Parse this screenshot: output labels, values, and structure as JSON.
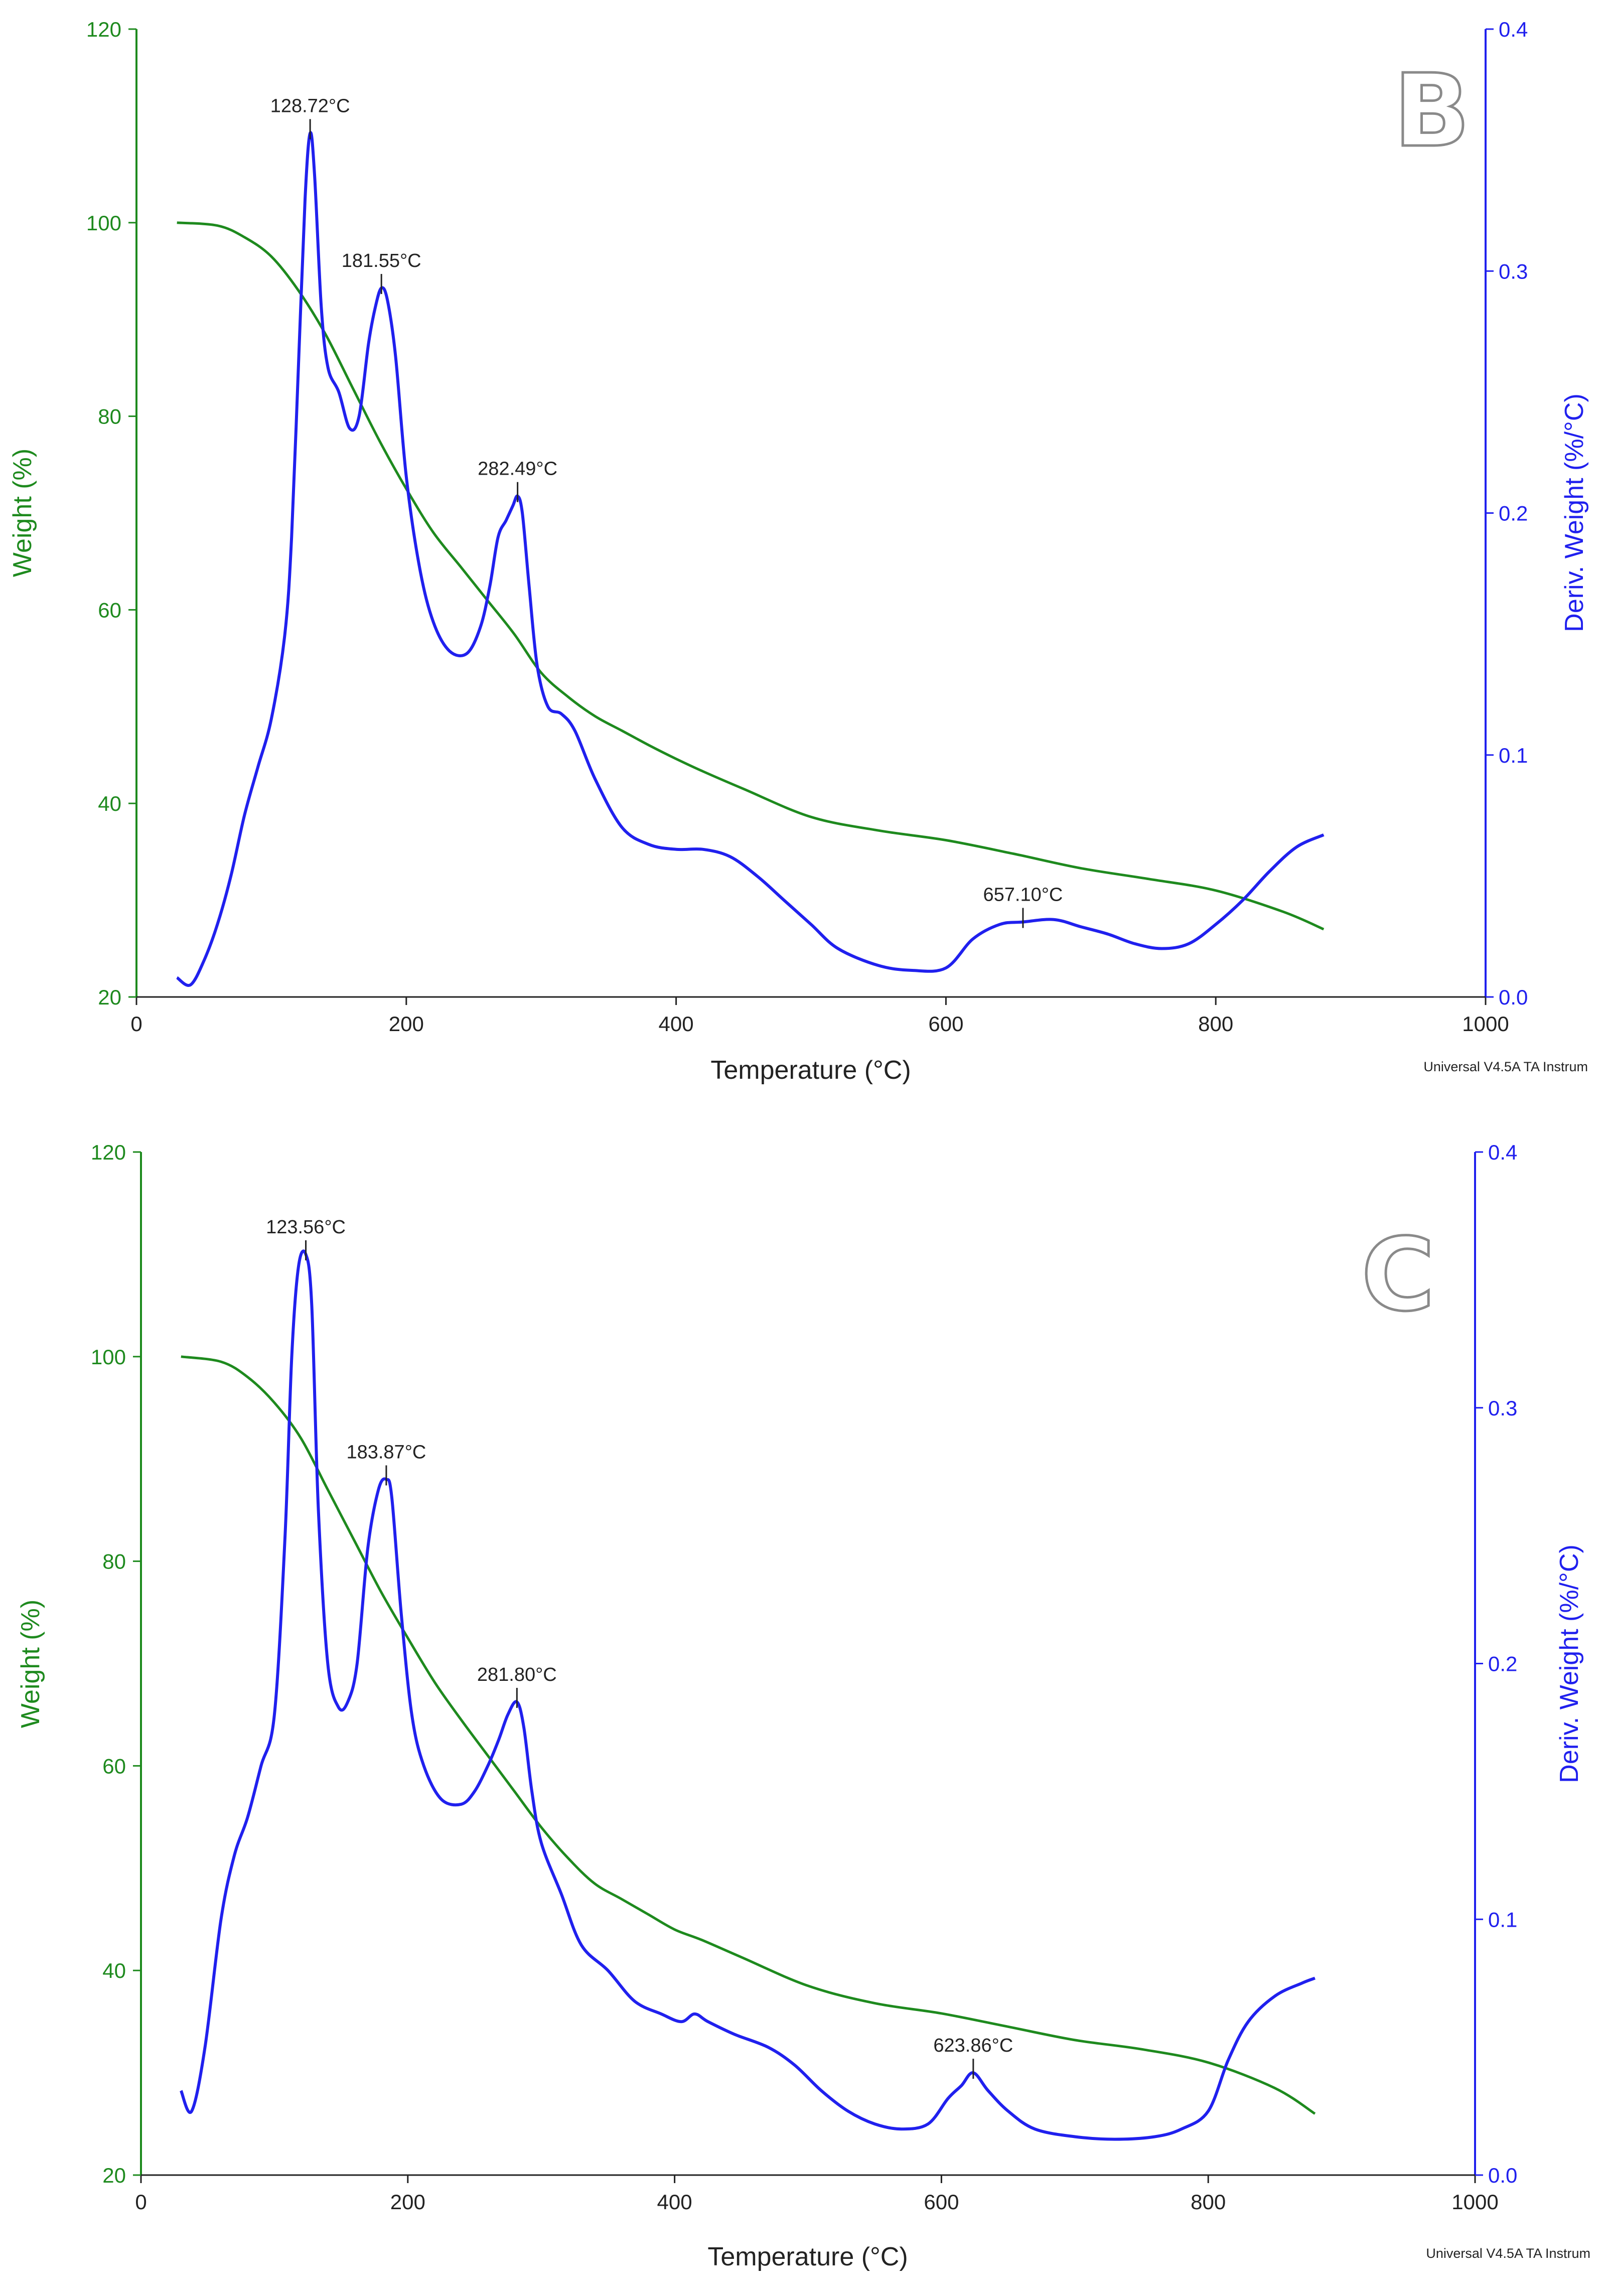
{
  "colors": {
    "weight": "#1e8a1e",
    "deriv": "#2020ee",
    "text": "#222222",
    "panel_letter_outline": "#8a8a8a"
  },
  "chart_data": [
    {
      "type": "line",
      "panel": "B",
      "xlabel": "Temperature (°C)",
      "ylabel_left": "Weight (%)",
      "ylabel_right": "Deriv. Weight (%/°C)",
      "xlim": [
        0,
        1000
      ],
      "ylim_left": [
        20,
        120
      ],
      "ylim_right": [
        0.0,
        0.4
      ],
      "x_ticks": [
        "0",
        "200",
        "400",
        "600",
        "800",
        "1000"
      ],
      "y_left_ticks": [
        "20",
        "40",
        "60",
        "80",
        "100",
        "120"
      ],
      "y_right_ticks": [
        "0.0",
        "0.1",
        "0.2",
        "0.3",
        "0.4"
      ],
      "credit": "Universal V4.5A TA Instrum",
      "series": [
        {
          "name": "Weight",
          "axis": "left",
          "x": [
            30,
            60,
            80,
            100,
            120,
            140,
            160,
            180,
            200,
            220,
            240,
            260,
            280,
            300,
            320,
            340,
            360,
            380,
            400,
            420,
            450,
            500,
            550,
            600,
            650,
            700,
            750,
            800,
            850,
            880
          ],
          "y": [
            100,
            99.7,
            98.5,
            96.5,
            93,
            88.5,
            83,
            77.5,
            72.5,
            68,
            64.5,
            61,
            57.5,
            53.5,
            51,
            49,
            47.5,
            46,
            44.6,
            43.3,
            41.5,
            38.6,
            37.2,
            36.2,
            34.8,
            33.3,
            32.2,
            31,
            28.8,
            27
          ]
        },
        {
          "name": "Deriv. Weight",
          "axis": "right",
          "x": [
            30,
            40,
            50,
            60,
            70,
            80,
            90,
            100,
            110,
            115,
            120,
            125,
            128.72,
            132,
            137,
            142,
            150,
            158,
            165,
            172,
            177,
            181.55,
            186,
            192,
            200,
            210,
            220,
            232,
            245,
            255,
            262,
            268,
            274,
            279,
            282.49,
            286,
            291,
            297,
            305,
            315,
            325,
            340,
            360,
            380,
            400,
            420,
            440,
            460,
            480,
            500,
            520,
            550,
            575,
            600,
            620,
            640,
            657.1,
            680,
            700,
            720,
            740,
            760,
            780,
            800,
            820,
            840,
            860,
            880
          ],
          "y": [
            0.008,
            0.005,
            0.015,
            0.03,
            0.05,
            0.075,
            0.095,
            0.115,
            0.15,
            0.19,
            0.26,
            0.33,
            0.357,
            0.34,
            0.285,
            0.26,
            0.25,
            0.235,
            0.24,
            0.27,
            0.285,
            0.293,
            0.288,
            0.265,
            0.215,
            0.177,
            0.155,
            0.143,
            0.142,
            0.153,
            0.17,
            0.19,
            0.197,
            0.203,
            0.207,
            0.2,
            0.17,
            0.137,
            0.12,
            0.117,
            0.11,
            0.09,
            0.07,
            0.063,
            0.061,
            0.061,
            0.058,
            0.05,
            0.04,
            0.03,
            0.02,
            0.013,
            0.011,
            0.012,
            0.024,
            0.03,
            0.031,
            0.032,
            0.029,
            0.026,
            0.022,
            0.02,
            0.022,
            0.03,
            0.04,
            0.052,
            0.062,
            0.067
          ]
        }
      ],
      "annotations": [
        {
          "text": "128.72°C",
          "x": 128.72,
          "y": 0.357
        },
        {
          "text": "181.55°C",
          "x": 181.55,
          "y": 0.293
        },
        {
          "text": "282.49°C",
          "x": 282.49,
          "y": 0.207
        },
        {
          "text": "657.10°C",
          "x": 657.1,
          "y": 0.031
        }
      ]
    },
    {
      "type": "line",
      "panel": "C",
      "xlabel": "Temperature (°C)",
      "ylabel_left": "Weight (%)",
      "ylabel_right": "Deriv. Weight (%/°C)",
      "xlim": [
        0,
        1000
      ],
      "ylim_left": [
        20,
        120
      ],
      "ylim_right": [
        0.0,
        0.4
      ],
      "x_ticks": [
        "0",
        "200",
        "400",
        "600",
        "800",
        "1000"
      ],
      "y_left_ticks": [
        "20",
        "40",
        "60",
        "80",
        "100",
        "120"
      ],
      "y_right_ticks": [
        "0.0",
        "0.1",
        "0.2",
        "0.3",
        "0.4"
      ],
      "credit": "Universal V4.5A TA Instrum",
      "series": [
        {
          "name": "Weight",
          "axis": "left",
          "x": [
            30,
            60,
            80,
            100,
            120,
            140,
            160,
            180,
            200,
            220,
            240,
            260,
            280,
            300,
            320,
            340,
            360,
            380,
            400,
            420,
            450,
            500,
            550,
            600,
            650,
            700,
            750,
            800,
            850,
            880
          ],
          "y": [
            100,
            99.5,
            98,
            95.5,
            92,
            87,
            82,
            77,
            72.5,
            68.2,
            64.5,
            61,
            57.5,
            54,
            51,
            48.5,
            47,
            45.5,
            44,
            43,
            41.3,
            38.5,
            36.8,
            35.8,
            34.5,
            33.2,
            32.3,
            31,
            28.5,
            26
          ]
        },
        {
          "name": "Deriv. Weight",
          "axis": "right",
          "x": [
            30,
            38,
            48,
            60,
            70,
            80,
            90,
            100,
            108,
            113,
            118,
            123.56,
            128,
            133,
            140,
            148,
            155,
            162,
            170,
            178,
            183.87,
            188,
            195,
            203,
            212,
            225,
            240,
            250,
            260,
            268,
            275,
            281.8,
            287,
            293,
            300,
            315,
            330,
            350,
            370,
            390,
            405,
            415,
            425,
            445,
            470,
            490,
            510,
            530,
            550,
            570,
            590,
            605,
            615,
            623.86,
            635,
            650,
            670,
            700,
            730,
            760,
            780,
            800,
            815,
            830,
            850,
            870,
            880
          ],
          "y": [
            0.033,
            0.025,
            0.05,
            0.1,
            0.125,
            0.14,
            0.16,
            0.18,
            0.25,
            0.32,
            0.355,
            0.36,
            0.34,
            0.26,
            0.2,
            0.183,
            0.185,
            0.2,
            0.245,
            0.268,
            0.272,
            0.265,
            0.22,
            0.18,
            0.16,
            0.147,
            0.145,
            0.15,
            0.16,
            0.17,
            0.18,
            0.185,
            0.175,
            0.15,
            0.13,
            0.11,
            0.09,
            0.08,
            0.068,
            0.063,
            0.06,
            0.063,
            0.06,
            0.055,
            0.05,
            0.043,
            0.033,
            0.025,
            0.02,
            0.018,
            0.02,
            0.03,
            0.035,
            0.04,
            0.033,
            0.025,
            0.018,
            0.015,
            0.014,
            0.015,
            0.018,
            0.025,
            0.045,
            0.06,
            0.07,
            0.075,
            0.077
          ]
        }
      ],
      "annotations": [
        {
          "text": "123.56°C",
          "x": 123.56,
          "y": 0.36
        },
        {
          "text": "183.87°C",
          "x": 183.87,
          "y": 0.272
        },
        {
          "text": "281.80°C",
          "x": 281.8,
          "y": 0.185
        },
        {
          "text": "623.86°C",
          "x": 623.86,
          "y": 0.04
        }
      ]
    }
  ]
}
